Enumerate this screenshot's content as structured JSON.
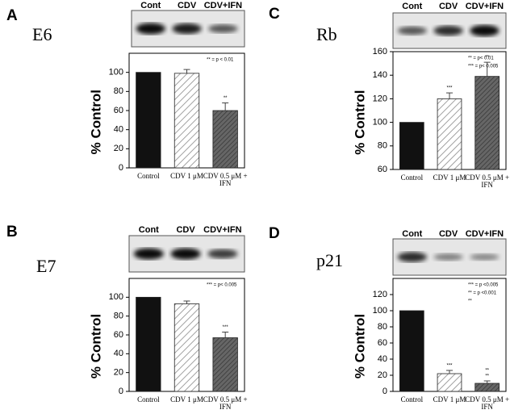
{
  "chart_data": [
    {
      "type": "bar",
      "panel": "A",
      "label": "E6",
      "blot_labels": [
        "Cont",
        "CDV",
        "CDV+IFN"
      ],
      "ylabel": "% Control",
      "categories": [
        "Control",
        "CDV 1 μM",
        "CDV 0.5 μM + IFN"
      ],
      "values": [
        100,
        99,
        60
      ],
      "errors": [
        null,
        4,
        8
      ],
      "significance": [
        null,
        null,
        [
          "**"
        ]
      ],
      "legend": [
        "** = p < 0.01"
      ],
      "ylim": [
        0,
        120
      ],
      "yticks": [
        0,
        20,
        40,
        60,
        80,
        100
      ]
    },
    {
      "type": "bar",
      "panel": "B",
      "label": "E7",
      "blot_labels": [
        "Cont",
        "CDV",
        "CDV+IFN"
      ],
      "ylabel": "% Control",
      "categories": [
        "Control",
        "CDV 1 μM",
        "CDV 0.5 μM + IFN"
      ],
      "values": [
        100,
        93,
        57
      ],
      "errors": [
        null,
        3,
        6
      ],
      "significance": [
        null,
        null,
        [
          "***"
        ]
      ],
      "legend": [
        "*** = p< 0.005"
      ],
      "ylim": [
        0,
        120
      ],
      "yticks": [
        0,
        20,
        40,
        60,
        80,
        100
      ]
    },
    {
      "type": "bar",
      "panel": "C",
      "label": "Rb",
      "blot_labels": [
        "Cont",
        "CDV",
        "CDV+IFN"
      ],
      "ylabel": "% Control",
      "categories": [
        "Control",
        "CDV 1 μM",
        "CDV 0.5 μM + IFN"
      ],
      "values": [
        100,
        120,
        139
      ],
      "errors": [
        null,
        5,
        12
      ],
      "significance": [
        null,
        [
          "***"
        ],
        [
          "**"
        ]
      ],
      "legend": [
        "** = p< 0.01",
        "*** = p< 0.005"
      ],
      "ylim": [
        60,
        160
      ],
      "yticks": [
        60,
        80,
        100,
        120,
        140,
        160
      ]
    },
    {
      "type": "bar",
      "panel": "D",
      "label": "p21",
      "blot_labels": [
        "Cont",
        "CDV",
        "CDV+IFN"
      ],
      "ylabel": "% Control",
      "categories": [
        "Control",
        "CDV 1 μM",
        "CDV 0.5 μM + IFN"
      ],
      "values": [
        100,
        22,
        10
      ],
      "errors": [
        null,
        4,
        3
      ],
      "significance": [
        null,
        [
          "***"
        ],
        [
          "**",
          "**"
        ]
      ],
      "legend": [
        "*** = p <0.005",
        "** = p <0.001",
        "**"
      ],
      "ylim": [
        0,
        140
      ],
      "yticks": [
        0,
        20,
        40,
        60,
        80,
        100,
        120
      ]
    }
  ]
}
